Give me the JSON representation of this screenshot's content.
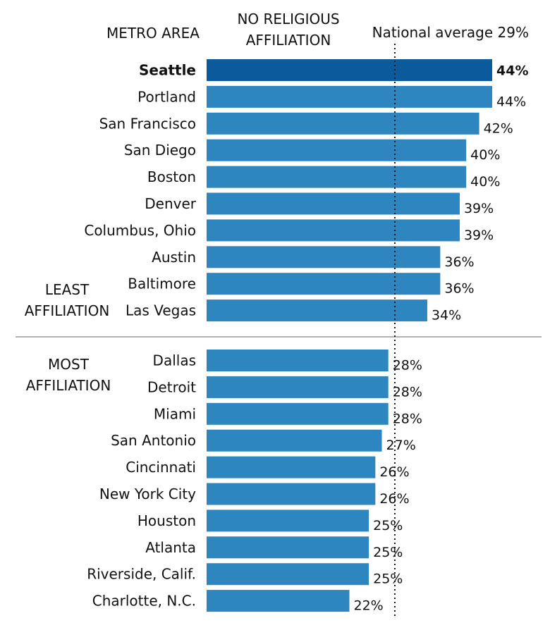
{
  "chart_data": {
    "type": "bar",
    "orientation": "horizontal",
    "headers": {
      "category": "METRO AREA",
      "value_line1": "NO RELIGIOUS",
      "value_line2": "AFFILIATION"
    },
    "reference_line": {
      "value": 29,
      "label": "National average 29%",
      "style": "dotted"
    },
    "groups": [
      {
        "label_line1": "LEAST",
        "label_line2": "AFFILIATION",
        "categories": [
          "Seattle",
          "Portland",
          "San Francisco",
          "San Diego",
          "Boston",
          "Denver",
          "Columbus, Ohio",
          "Austin",
          "Baltimore",
          "Las Vegas"
        ],
        "values": [
          44,
          44,
          42,
          40,
          40,
          39,
          39,
          36,
          36,
          34
        ],
        "value_labels": [
          "44%",
          "44%",
          "42%",
          "40%",
          "40%",
          "39%",
          "39%",
          "36%",
          "36%",
          "34%"
        ]
      },
      {
        "label_line1": "MOST",
        "label_line2": "AFFILIATION",
        "categories": [
          "Dallas",
          "Detroit",
          "Miami",
          "San Antonio",
          "Cincinnati",
          "New York City",
          "Houston",
          "Atlanta",
          "Riverside, Calif.",
          "Charlotte, N.C."
        ],
        "values": [
          28,
          28,
          28,
          27,
          26,
          26,
          25,
          25,
          25,
          22
        ],
        "value_labels": [
          "28%",
          "28%",
          "28%",
          "27%",
          "26%",
          "26%",
          "25%",
          "25%",
          "25%",
          "22%"
        ]
      }
    ],
    "highlight": "Seattle",
    "xlim": [
      0,
      44
    ],
    "grid": false,
    "legend": "none",
    "colors": {
      "bar": "#2e86c1",
      "highlight_bar": "#0a5a9c",
      "divider": "#999999",
      "reference_line": "#111111"
    }
  }
}
